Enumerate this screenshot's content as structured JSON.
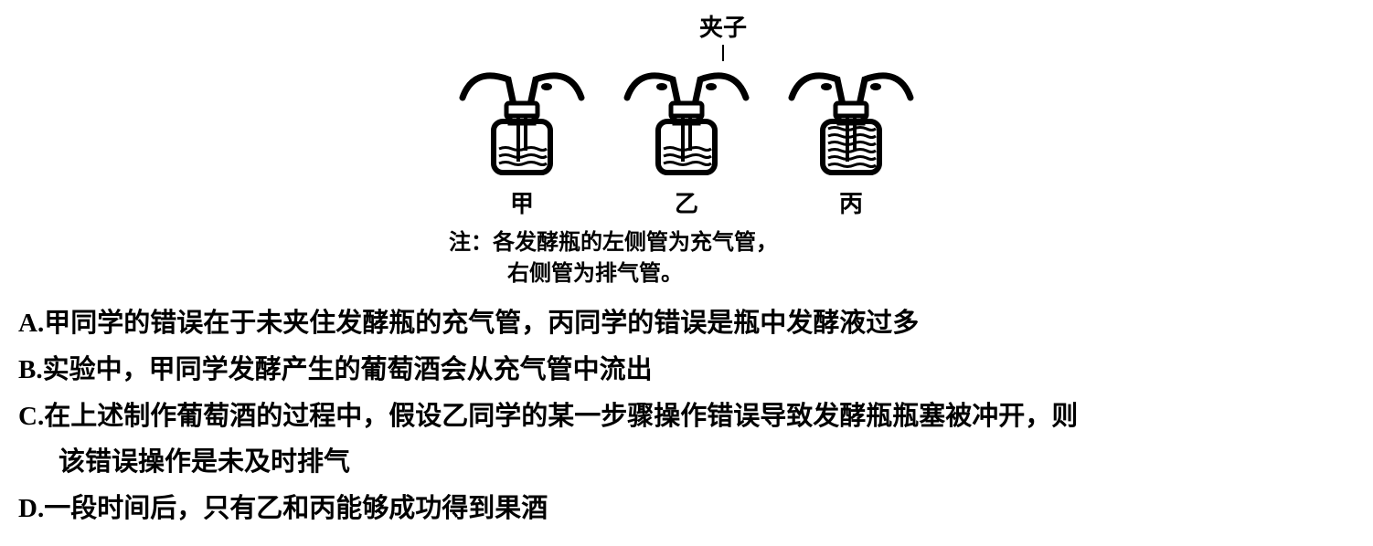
{
  "diagram": {
    "clip_label": "夹子",
    "bottles": [
      {
        "label": "甲",
        "left_clip": false,
        "right_clip": true,
        "fill_level": "half"
      },
      {
        "label": "乙",
        "left_clip": true,
        "right_clip": true,
        "fill_level": "half"
      },
      {
        "label": "丙",
        "left_clip": true,
        "right_clip": true,
        "fill_level": "full"
      }
    ],
    "note_line1": "注：各发酵瓶的左侧管为充气管，",
    "note_line2": "右侧管为排气管。",
    "colors": {
      "stroke": "#000000",
      "bg": "#ffffff"
    }
  },
  "options": {
    "A": {
      "letter": "A.",
      "text": "甲同学的错误在于未夹住发酵瓶的充气管，丙同学的错误是瓶中发酵液过多"
    },
    "B": {
      "letter": "B.",
      "text": "实验中，甲同学发酵产生的葡萄酒会从充气管中流出"
    },
    "C": {
      "letter": "C.",
      "text": "在上述制作葡萄酒的过程中，假设乙同学的某一步骤操作错误导致发酵瓶瓶塞被冲开，则",
      "cont": "该错误操作是未及时排气"
    },
    "D": {
      "letter": "D.",
      "text": "一段时间后，只有乙和丙能够成功得到果酒"
    }
  }
}
